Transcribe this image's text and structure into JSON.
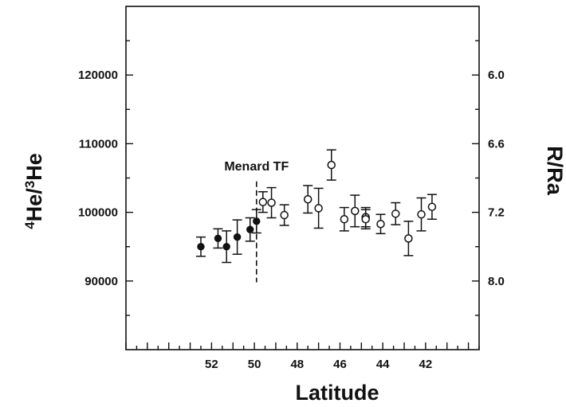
{
  "chart_data": {
    "type": "scatter",
    "title": "",
    "xlabel": "Latitude",
    "ylabel_left": {
      "main": "He/",
      "sup1": "4",
      "sup2": "3",
      "tail": "He"
    },
    "ylabel_right": "R/Ra",
    "xlim": [
      56,
      39.5
    ],
    "ylim": [
      80000,
      130000
    ],
    "x_reversed": true,
    "x_ticks": [
      "52",
      "50",
      "48",
      "46",
      "44",
      "42"
    ],
    "x_tick_values": [
      52,
      50,
      48,
      46,
      44,
      42
    ],
    "x_minor_step": 0.5,
    "y_ticks_left": [
      "90000",
      "100000",
      "110000",
      "120000"
    ],
    "y_tick_values_left": [
      90000,
      100000,
      110000,
      120000
    ],
    "y_minor_step": 5000,
    "y_ticks_right": [
      "6.0",
      "6.6",
      "7.2",
      "8.0"
    ],
    "y_tick_values_right": [
      120000,
      110000,
      100000,
      90000
    ],
    "grid": false,
    "legend": "none",
    "annotation": {
      "text": "Menard TF",
      "x": 49.9,
      "y_top": 104500,
      "y_bottom": 89800
    },
    "series": [
      {
        "marker": "filled-circle",
        "points": [
          {
            "x": 52.5,
            "y": 95000,
            "err": 1400
          },
          {
            "x": 51.7,
            "y": 96200,
            "err": 1400
          },
          {
            "x": 51.3,
            "y": 95000,
            "err": 2300
          },
          {
            "x": 50.8,
            "y": 96400,
            "err": 2500
          },
          {
            "x": 50.2,
            "y": 97500,
            "err": 1700
          },
          {
            "x": 49.9,
            "y": 98700,
            "err": 1700
          }
        ]
      },
      {
        "marker": "open-circle",
        "points": [
          {
            "x": 49.6,
            "y": 101500,
            "err": 1500
          },
          {
            "x": 49.2,
            "y": 101400,
            "err": 2200
          },
          {
            "x": 48.6,
            "y": 99600,
            "err": 1500
          },
          {
            "x": 47.5,
            "y": 101900,
            "err": 2000
          },
          {
            "x": 47.0,
            "y": 100600,
            "err": 2900
          },
          {
            "x": 46.4,
            "y": 106900,
            "err": 2200
          },
          {
            "x": 45.8,
            "y": 99000,
            "err": 1700
          },
          {
            "x": 45.3,
            "y": 100200,
            "err": 2300
          },
          {
            "x": 44.8,
            "y": 99300,
            "err": 1400
          },
          {
            "x": 44.8,
            "y": 99000,
            "err": 1400
          },
          {
            "x": 44.1,
            "y": 98300,
            "err": 1400
          },
          {
            "x": 43.4,
            "y": 99800,
            "err": 1600
          },
          {
            "x": 42.8,
            "y": 96200,
            "err": 2500
          },
          {
            "x": 42.2,
            "y": 99700,
            "err": 2400
          },
          {
            "x": 41.7,
            "y": 100800,
            "err": 1800
          }
        ]
      }
    ]
  }
}
